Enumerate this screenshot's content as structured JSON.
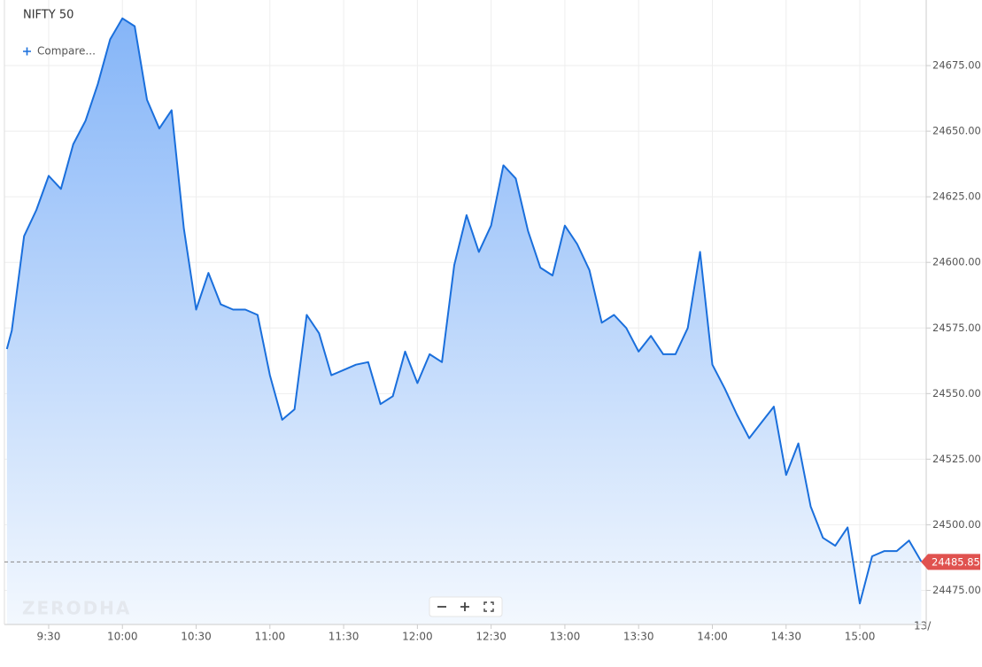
{
  "chart_data": {
    "type": "area",
    "title": "NIFTY 50",
    "compare_label": "Compare...",
    "watermark": "ZERODHA",
    "x_edge_label": "13/",
    "x": [
      553,
      555,
      560,
      565,
      570,
      575,
      580,
      585,
      590,
      595,
      600,
      605,
      610,
      615,
      620,
      625,
      630,
      635,
      640,
      645,
      650,
      655,
      660,
      665,
      670,
      675,
      680,
      685,
      690,
      695,
      700,
      705,
      710,
      715,
      720,
      725,
      730,
      735,
      740,
      745,
      750,
      755,
      760,
      765,
      770,
      775,
      780,
      785,
      790,
      795,
      800,
      805,
      810,
      815,
      820,
      825,
      830,
      835,
      840,
      845,
      850,
      855,
      860,
      865,
      870,
      875,
      880,
      885,
      890,
      895,
      900,
      905,
      910,
      915,
      920,
      925
    ],
    "series": [
      {
        "name": "NIFTY 50",
        "color": "#1a6fdc",
        "values": [
          24567,
          24574,
          24610,
          24620,
          24633,
          24628,
          24645,
          24654,
          24668,
          24685,
          24693,
          24690,
          24662,
          24651,
          24658,
          24613,
          24582,
          24596,
          24584,
          24582,
          24582,
          24580,
          24557,
          24540,
          24544,
          24580,
          24573,
          24557,
          24559,
          24561,
          24562,
          24546,
          24549,
          24566,
          24554,
          24565,
          24562,
          24599,
          24618,
          24604,
          24614,
          24637,
          24632,
          24612,
          24598,
          24595,
          24614,
          24607,
          24597,
          24577,
          24580,
          24575,
          24566,
          24572,
          24565,
          24565,
          24575,
          24604,
          24561,
          24552,
          24542,
          24533,
          24539,
          24545,
          24519,
          24531,
          24507,
          24495,
          24492,
          24499,
          24470,
          24488,
          24490,
          24490,
          24494,
          24486
        ]
      }
    ],
    "last_price": 24485.85,
    "last_price_color": "#e0524f",
    "xlim": [
      552,
      927
    ],
    "ylim": [
      24462,
      24700
    ],
    "xticks": [
      {
        "value": 570,
        "label": "9:30"
      },
      {
        "value": 600,
        "label": "10:00"
      },
      {
        "value": 630,
        "label": "10:30"
      },
      {
        "value": 660,
        "label": "11:00"
      },
      {
        "value": 690,
        "label": "11:30"
      },
      {
        "value": 720,
        "label": "12:00"
      },
      {
        "value": 750,
        "label": "12:30"
      },
      {
        "value": 780,
        "label": "13:00"
      },
      {
        "value": 810,
        "label": "13:30"
      },
      {
        "value": 840,
        "label": "14:00"
      },
      {
        "value": 870,
        "label": "14:30"
      },
      {
        "value": 900,
        "label": "15:00"
      }
    ],
    "yticks": [
      {
        "value": 24475,
        "label": "24475.00"
      },
      {
        "value": 24500,
        "label": "24500.00"
      },
      {
        "value": 24525,
        "label": "24525.00"
      },
      {
        "value": 24550,
        "label": "24550.00"
      },
      {
        "value": 24575,
        "label": "24575.00"
      },
      {
        "value": 24600,
        "label": "24600.00"
      },
      {
        "value": 24625,
        "label": "24625.00"
      },
      {
        "value": 24650,
        "label": "24650.00"
      },
      {
        "value": 24675,
        "label": "24675.00"
      }
    ],
    "grid": true
  }
}
